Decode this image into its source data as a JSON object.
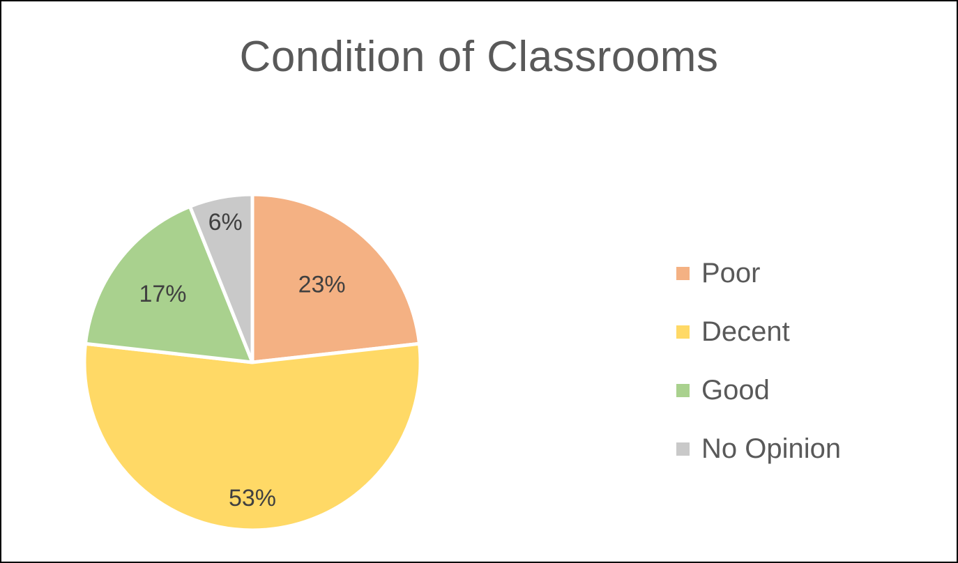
{
  "chart_data": {
    "type": "pie",
    "title": "Condition of Classrooms",
    "categories": [
      "Poor",
      "Decent",
      "Good",
      "No Opinion"
    ],
    "values": [
      23,
      53,
      17,
      6
    ],
    "labels": [
      "23%",
      "53%",
      "17%",
      "6%"
    ],
    "colors": [
      "#F4B183",
      "#FFD966",
      "#A9D18E",
      "#C9C9C9"
    ],
    "legend_position": "right",
    "start_angle": "12 o'clock, clockwise"
  }
}
